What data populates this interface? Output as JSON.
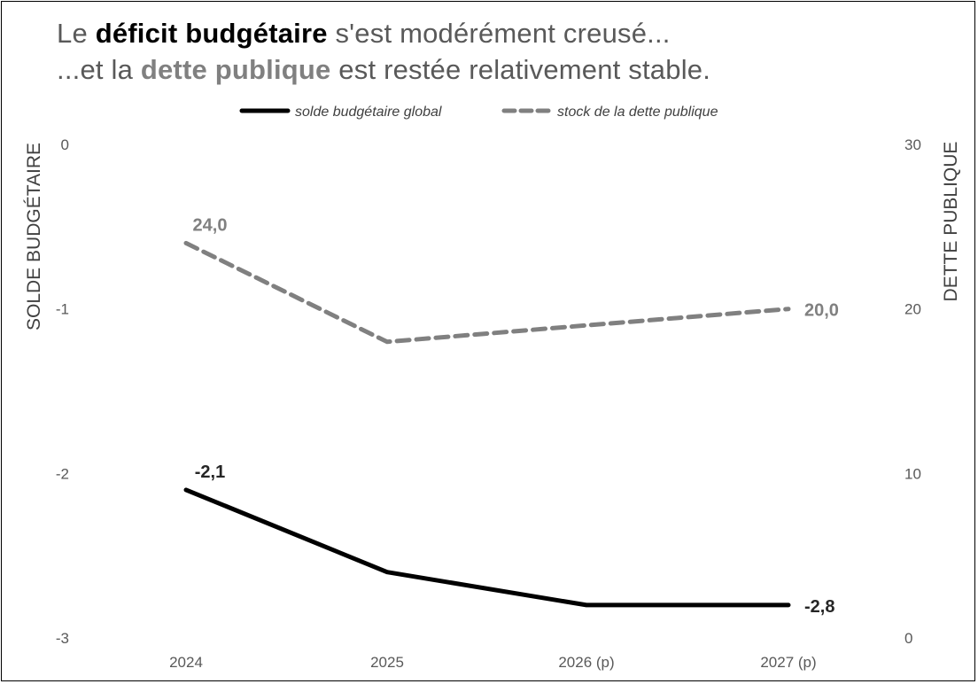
{
  "title": {
    "line1": {
      "before": "Le ",
      "emphasis": "déficit budgétaire",
      "after": " s'est modérément creusé..."
    },
    "line2": {
      "before": "...et la ",
      "emphasis": "dette publique",
      "after": " est restée relativement stable."
    }
  },
  "chart_data": {
    "type": "line",
    "categories": [
      "2024",
      "2025",
      "2026 (p)",
      "2027 (p)"
    ],
    "ylabel_left": "SOLDE BUDGÉTAIRE",
    "ylabel_right": "DETTE PUBLIQUE",
    "ylim_left": [
      -3,
      0
    ],
    "ylim_right": [
      0,
      30
    ],
    "yticks_left": [
      "0",
      "-1",
      "-2",
      "-3"
    ],
    "yticks_right": [
      "30",
      "20",
      "10",
      "0"
    ],
    "grid": false,
    "legend_position": "top",
    "series": [
      {
        "name": "solde budgétaire global",
        "axis": "left",
        "style": "solid",
        "color": "#000000",
        "values": [
          -2.1,
          -2.6,
          -2.8,
          -2.8
        ],
        "labels": [
          {
            "index": 0,
            "text": "-2,1"
          },
          {
            "index": 3,
            "text": "-2,8"
          }
        ]
      },
      {
        "name": "stock de la dette publique",
        "axis": "right",
        "style": "dashed",
        "color": "#808080",
        "values": [
          24.0,
          18.0,
          19.0,
          20.0
        ],
        "labels": [
          {
            "index": 0,
            "text": "24,0"
          },
          {
            "index": 3,
            "text": "20,0"
          }
        ]
      }
    ]
  }
}
